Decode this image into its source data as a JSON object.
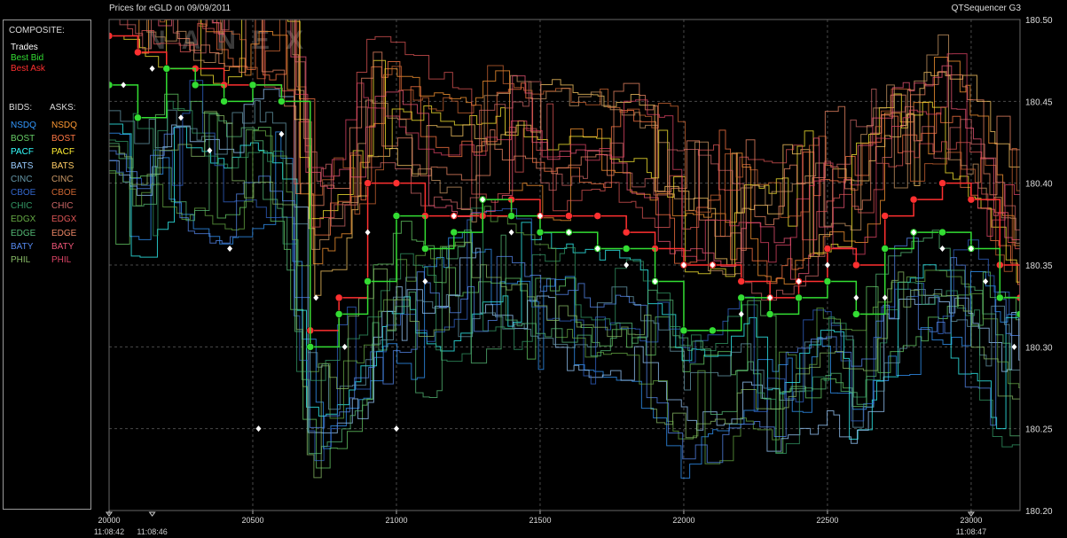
{
  "header": {
    "title": "Prices for  eGLD  on  09/09/2011",
    "app_name": "QTSequencer G3"
  },
  "watermark": "NANEX",
  "legend": {
    "composite_heading": "COMPOSITE:",
    "composite": [
      {
        "label": "Trades",
        "color": "#ffffff"
      },
      {
        "label": "Best Bid",
        "color": "#33dd33"
      },
      {
        "label": "Best Ask",
        "color": "#ff3030"
      }
    ],
    "bids_heading": "BIDS:",
    "asks_heading": "ASKS:",
    "exchanges": [
      {
        "bid": "NSDQ",
        "ask": "NSDQ",
        "bid_color": "#3399ff",
        "ask_color": "#ff9933"
      },
      {
        "bid": "BOST",
        "ask": "BOST",
        "bid_color": "#66cc66",
        "ask_color": "#ff7744"
      },
      {
        "bid": "PACF",
        "ask": "PACF",
        "bid_color": "#33ffff",
        "ask_color": "#ffee33"
      },
      {
        "bid": "BATS",
        "ask": "BATS",
        "bid_color": "#99ccff",
        "ask_color": "#ffcc66"
      },
      {
        "bid": "CINC",
        "ask": "CINC",
        "bid_color": "#6699aa",
        "ask_color": "#cc9966"
      },
      {
        "bid": "CBOE",
        "ask": "CBOE",
        "bid_color": "#3366cc",
        "ask_color": "#cc6633"
      },
      {
        "bid": "CHIC",
        "ask": "CHIC",
        "bid_color": "#339966",
        "ask_color": "#cc6666"
      },
      {
        "bid": "EDGX",
        "ask": "EDGX",
        "bid_color": "#66aa44",
        "ask_color": "#dd5555"
      },
      {
        "bid": "EDGE",
        "ask": "EDGE",
        "bid_color": "#55bb77",
        "ask_color": "#ee8866"
      },
      {
        "bid": "BATY",
        "ask": "BATY",
        "bid_color": "#5588ee",
        "ask_color": "#ee5577"
      },
      {
        "bid": "PHIL",
        "ask": "PHIL",
        "bid_color": "#88bb66",
        "ask_color": "#dd4466"
      }
    ]
  },
  "chart_data": {
    "type": "line",
    "title": "Prices for  eGLD  on  09/09/2011",
    "xlabel": "",
    "ylabel": "",
    "xlim": [
      20000,
      23170
    ],
    "ylim": [
      180.2,
      180.5
    ],
    "x_ticks": [
      20000,
      20500,
      21000,
      21500,
      22000,
      22500,
      23000
    ],
    "y_ticks": [
      "180.20",
      "180.25",
      "180.30",
      "180.35",
      "180.40",
      "180.45",
      "180.50"
    ],
    "time_ticks": [
      {
        "x": 20000,
        "label": "11:08:42"
      },
      {
        "x": 20150,
        "label": "11:08:46"
      },
      {
        "x": 23000,
        "label": "11:08:47"
      }
    ],
    "grid": true,
    "legend_position": "left",
    "series": [
      {
        "name": "Best Ask",
        "color": "#ff3030",
        "x": [
          20000,
          20100,
          20200,
          20300,
          20400,
          20500,
          20600,
          20700,
          20800,
          20900,
          21000,
          21100,
          21200,
          21300,
          21400,
          21500,
          21600,
          21700,
          21800,
          21900,
          22000,
          22100,
          22200,
          22300,
          22400,
          22500,
          22600,
          22700,
          22800,
          22900,
          23000,
          23100,
          23170
        ],
        "y": [
          180.49,
          180.48,
          180.47,
          180.47,
          180.46,
          180.46,
          180.45,
          180.31,
          180.33,
          180.4,
          180.4,
          180.38,
          180.38,
          180.38,
          180.39,
          180.38,
          180.38,
          180.38,
          180.37,
          180.36,
          180.35,
          180.35,
          180.34,
          180.33,
          180.34,
          180.36,
          180.35,
          180.38,
          180.39,
          180.4,
          180.39,
          180.35,
          180.33
        ]
      },
      {
        "name": "Best Bid",
        "color": "#33dd33",
        "x": [
          20000,
          20100,
          20200,
          20300,
          20400,
          20500,
          20600,
          20700,
          20800,
          20900,
          21000,
          21100,
          21200,
          21300,
          21400,
          21500,
          21600,
          21700,
          21800,
          21900,
          22000,
          22100,
          22200,
          22300,
          22400,
          22500,
          22600,
          22700,
          22800,
          22900,
          23000,
          23100,
          23170
        ],
        "y": [
          180.46,
          180.44,
          180.47,
          180.46,
          180.45,
          180.46,
          180.45,
          180.3,
          180.32,
          180.34,
          180.38,
          180.36,
          180.37,
          180.39,
          180.38,
          180.37,
          180.37,
          180.36,
          180.36,
          180.34,
          180.31,
          180.31,
          180.33,
          180.32,
          180.33,
          180.34,
          180.32,
          180.36,
          180.37,
          180.37,
          180.36,
          180.33,
          180.32
        ]
      },
      {
        "name": "Trades",
        "color": "#ffffff",
        "x": [
          20050,
          20150,
          20250,
          20350,
          20420,
          20520,
          20600,
          20720,
          20820,
          20900,
          21000,
          21100,
          21200,
          21300,
          21400,
          21500,
          21600,
          21700,
          21800,
          21900,
          22000,
          22100,
          22200,
          22300,
          22400,
          22500,
          22600,
          22700,
          22800,
          22900,
          23000,
          23050,
          23150
        ],
        "y": [
          180.46,
          180.47,
          180.44,
          180.42,
          180.36,
          180.25,
          180.43,
          180.33,
          180.3,
          180.37,
          180.25,
          180.34,
          180.38,
          180.39,
          180.37,
          180.38,
          180.37,
          180.36,
          180.35,
          180.34,
          180.35,
          180.35,
          180.32,
          180.33,
          180.34,
          180.35,
          180.33,
          180.33,
          180.37,
          180.36,
          180.36,
          180.34,
          180.3
        ]
      }
    ]
  }
}
